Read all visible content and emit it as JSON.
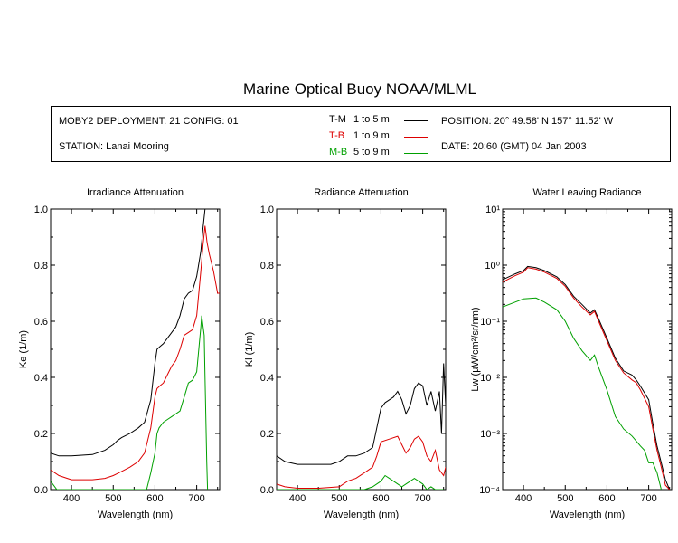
{
  "title": "Marine Optical Buoy NOAA/MLML",
  "info": {
    "deployment": "MOBY2 DEPLOYMENT: 21 CONFIG: 01",
    "station": "STATION: Lanai Mooring",
    "position": "POSITION: 20° 49.58' N   157° 11.52' W",
    "date": "DATE: 20:60 (GMT) 04 Jan 2003",
    "legend": [
      {
        "label": "T-M",
        "range": "1 to 5  m",
        "color": "#000000"
      },
      {
        "label": "T-B",
        "range": "1 to 9  m",
        "color": "#dd0000"
      },
      {
        "label": "M-B",
        "range": "5 to 9  m",
        "color": "#00a000"
      }
    ]
  },
  "colors": {
    "T-M": "#000000",
    "T-B": "#dd0000",
    "M-B": "#00a000"
  },
  "chart_data": [
    {
      "type": "line",
      "title": "Irradiance Attenuation",
      "xlabel": "Wavelength (nm)",
      "ylabel": "Ke  (1/m)",
      "xlim": [
        350,
        755
      ],
      "ylim": [
        0,
        1.0
      ],
      "xticks": [
        400,
        500,
        600,
        700
      ],
      "yticks": [
        0.0,
        0.2,
        0.4,
        0.6,
        0.8,
        1.0
      ],
      "yticklabels": [
        "0.0",
        "0.2",
        "0.4",
        "0.6",
        "0.8",
        "1.0"
      ],
      "series": [
        {
          "name": "T-M",
          "x": [
            350,
            370,
            400,
            450,
            480,
            500,
            510,
            520,
            540,
            560,
            575,
            590,
            600,
            605,
            612,
            620,
            630,
            640,
            650,
            660,
            670,
            680,
            690,
            700,
            710,
            715,
            720
          ],
          "y": [
            0.13,
            0.12,
            0.12,
            0.125,
            0.14,
            0.16,
            0.175,
            0.185,
            0.2,
            0.22,
            0.24,
            0.32,
            0.45,
            0.5,
            0.51,
            0.52,
            0.54,
            0.56,
            0.58,
            0.62,
            0.68,
            0.7,
            0.71,
            0.76,
            0.85,
            0.93,
            1.0
          ]
        },
        {
          "name": "T-B",
          "x": [
            350,
            370,
            390,
            400,
            450,
            480,
            500,
            520,
            540,
            560,
            575,
            590,
            600,
            605,
            612,
            620,
            630,
            640,
            650,
            660,
            670,
            680,
            690,
            700,
            710,
            715,
            720,
            725,
            730,
            740,
            750,
            755
          ],
          "y": [
            0.07,
            0.05,
            0.04,
            0.035,
            0.035,
            0.04,
            0.05,
            0.065,
            0.08,
            0.1,
            0.13,
            0.22,
            0.33,
            0.36,
            0.37,
            0.38,
            0.41,
            0.44,
            0.46,
            0.5,
            0.55,
            0.56,
            0.57,
            0.62,
            0.78,
            0.87,
            0.94,
            0.88,
            0.84,
            0.78,
            0.7,
            0.7
          ]
        },
        {
          "name": "M-B",
          "x": [
            350,
            360,
            365,
            580,
            590,
            600,
            605,
            610,
            620,
            630,
            640,
            650,
            660,
            670,
            680,
            690,
            700,
            710,
            712,
            718,
            720,
            724,
            726
          ],
          "y": [
            0.03,
            0.01,
            0.0,
            0.0,
            0.06,
            0.13,
            0.2,
            0.22,
            0.24,
            0.25,
            0.26,
            0.27,
            0.28,
            0.33,
            0.38,
            0.39,
            0.42,
            0.58,
            0.62,
            0.55,
            0.4,
            0.1,
            0.0
          ]
        }
      ]
    },
    {
      "type": "line",
      "title": "Radiance Attenuation",
      "xlabel": "Wavelength (nm)",
      "ylabel": "Kl  (1/m)",
      "xlim": [
        350,
        755
      ],
      "ylim": [
        0,
        1.0
      ],
      "xticks": [
        400,
        500,
        600,
        700
      ],
      "yticks": [
        0.0,
        0.2,
        0.4,
        0.6,
        0.8,
        1.0
      ],
      "yticklabels": [
        "0.0",
        "0.2",
        "0.4",
        "0.6",
        "0.8",
        "1.0"
      ],
      "series": [
        {
          "name": "T-M",
          "x": [
            350,
            370,
            400,
            450,
            480,
            500,
            520,
            540,
            560,
            580,
            590,
            600,
            610,
            620,
            630,
            640,
            650,
            660,
            670,
            680,
            690,
            700,
            710,
            720,
            730,
            740,
            745,
            750,
            755
          ],
          "y": [
            0.12,
            0.1,
            0.09,
            0.09,
            0.09,
            0.1,
            0.12,
            0.12,
            0.13,
            0.15,
            0.22,
            0.29,
            0.31,
            0.32,
            0.33,
            0.35,
            0.32,
            0.27,
            0.3,
            0.36,
            0.38,
            0.37,
            0.3,
            0.35,
            0.28,
            0.35,
            0.2,
            0.45,
            0.3
          ]
        },
        {
          "name": "T-B",
          "x": [
            350,
            370,
            400,
            450,
            500,
            520,
            540,
            560,
            580,
            590,
            600,
            620,
            640,
            650,
            660,
            670,
            680,
            690,
            700,
            710,
            720,
            730,
            740,
            750,
            755
          ],
          "y": [
            0.02,
            0.01,
            0.005,
            0.005,
            0.01,
            0.03,
            0.04,
            0.06,
            0.08,
            0.12,
            0.17,
            0.18,
            0.19,
            0.16,
            0.13,
            0.15,
            0.18,
            0.19,
            0.17,
            0.12,
            0.1,
            0.14,
            0.07,
            0.05,
            0.08
          ]
        },
        {
          "name": "M-B",
          "x": [
            350,
            500,
            560,
            580,
            590,
            600,
            610,
            620,
            630,
            640,
            650,
            660,
            670,
            680,
            690,
            700,
            710,
            720,
            730,
            740,
            750
          ],
          "y": [
            0.0,
            0.0,
            0.0,
            0.01,
            0.02,
            0.03,
            0.05,
            0.04,
            0.03,
            0.02,
            0.01,
            0.02,
            0.03,
            0.04,
            0.03,
            0.02,
            0.0,
            0.01,
            0.0,
            0.0,
            0.0
          ]
        }
      ]
    },
    {
      "type": "line",
      "title": "Water Leaving Radiance",
      "xlabel": "Wavelength (nm)",
      "ylabel": "Lw  (µW/cm²/sr/nm)",
      "xlim": [
        350,
        755
      ],
      "ylim": [
        0.0001,
        10
      ],
      "log_y": true,
      "xticks": [
        400,
        500,
        600,
        700
      ],
      "yticks": [
        0.0001,
        0.001,
        0.01,
        0.1,
        1,
        10
      ],
      "yticklabels": [
        "10⁻⁴",
        "10⁻³",
        "10⁻²",
        "10⁻¹",
        "10⁰",
        "10¹"
      ],
      "series": [
        {
          "name": "T-M",
          "x": [
            350,
            380,
            400,
            410,
            430,
            450,
            480,
            500,
            520,
            540,
            560,
            570,
            580,
            600,
            620,
            640,
            660,
            670,
            680,
            700,
            710,
            720,
            730,
            740,
            750
          ],
          "y": [
            0.55,
            0.7,
            0.8,
            0.95,
            0.9,
            0.8,
            0.62,
            0.45,
            0.28,
            0.2,
            0.14,
            0.16,
            0.11,
            0.05,
            0.022,
            0.013,
            0.011,
            0.009,
            0.007,
            0.004,
            0.0015,
            0.0006,
            0.0003,
            0.00015,
            0.0001
          ]
        },
        {
          "name": "T-B",
          "x": [
            350,
            380,
            400,
            410,
            430,
            450,
            480,
            500,
            520,
            540,
            560,
            570,
            580,
            600,
            620,
            640,
            660,
            670,
            680,
            700,
            710,
            720,
            730,
            740,
            750
          ],
          "y": [
            0.5,
            0.65,
            0.75,
            0.9,
            0.85,
            0.75,
            0.58,
            0.42,
            0.26,
            0.18,
            0.13,
            0.15,
            0.1,
            0.045,
            0.02,
            0.012,
            0.009,
            0.008,
            0.006,
            0.003,
            0.0012,
            0.0005,
            0.00025,
            0.00012,
            0.0001
          ]
        },
        {
          "name": "M-B",
          "x": [
            350,
            380,
            400,
            430,
            450,
            480,
            500,
            520,
            540,
            560,
            570,
            580,
            600,
            620,
            640,
            660,
            680,
            690,
            700,
            710,
            720,
            730
          ],
          "y": [
            0.18,
            0.22,
            0.25,
            0.26,
            0.22,
            0.16,
            0.1,
            0.05,
            0.03,
            0.02,
            0.025,
            0.015,
            0.006,
            0.002,
            0.0012,
            0.0009,
            0.0006,
            0.0005,
            0.0003,
            0.0003,
            0.0002,
            0.0001
          ]
        }
      ]
    }
  ]
}
